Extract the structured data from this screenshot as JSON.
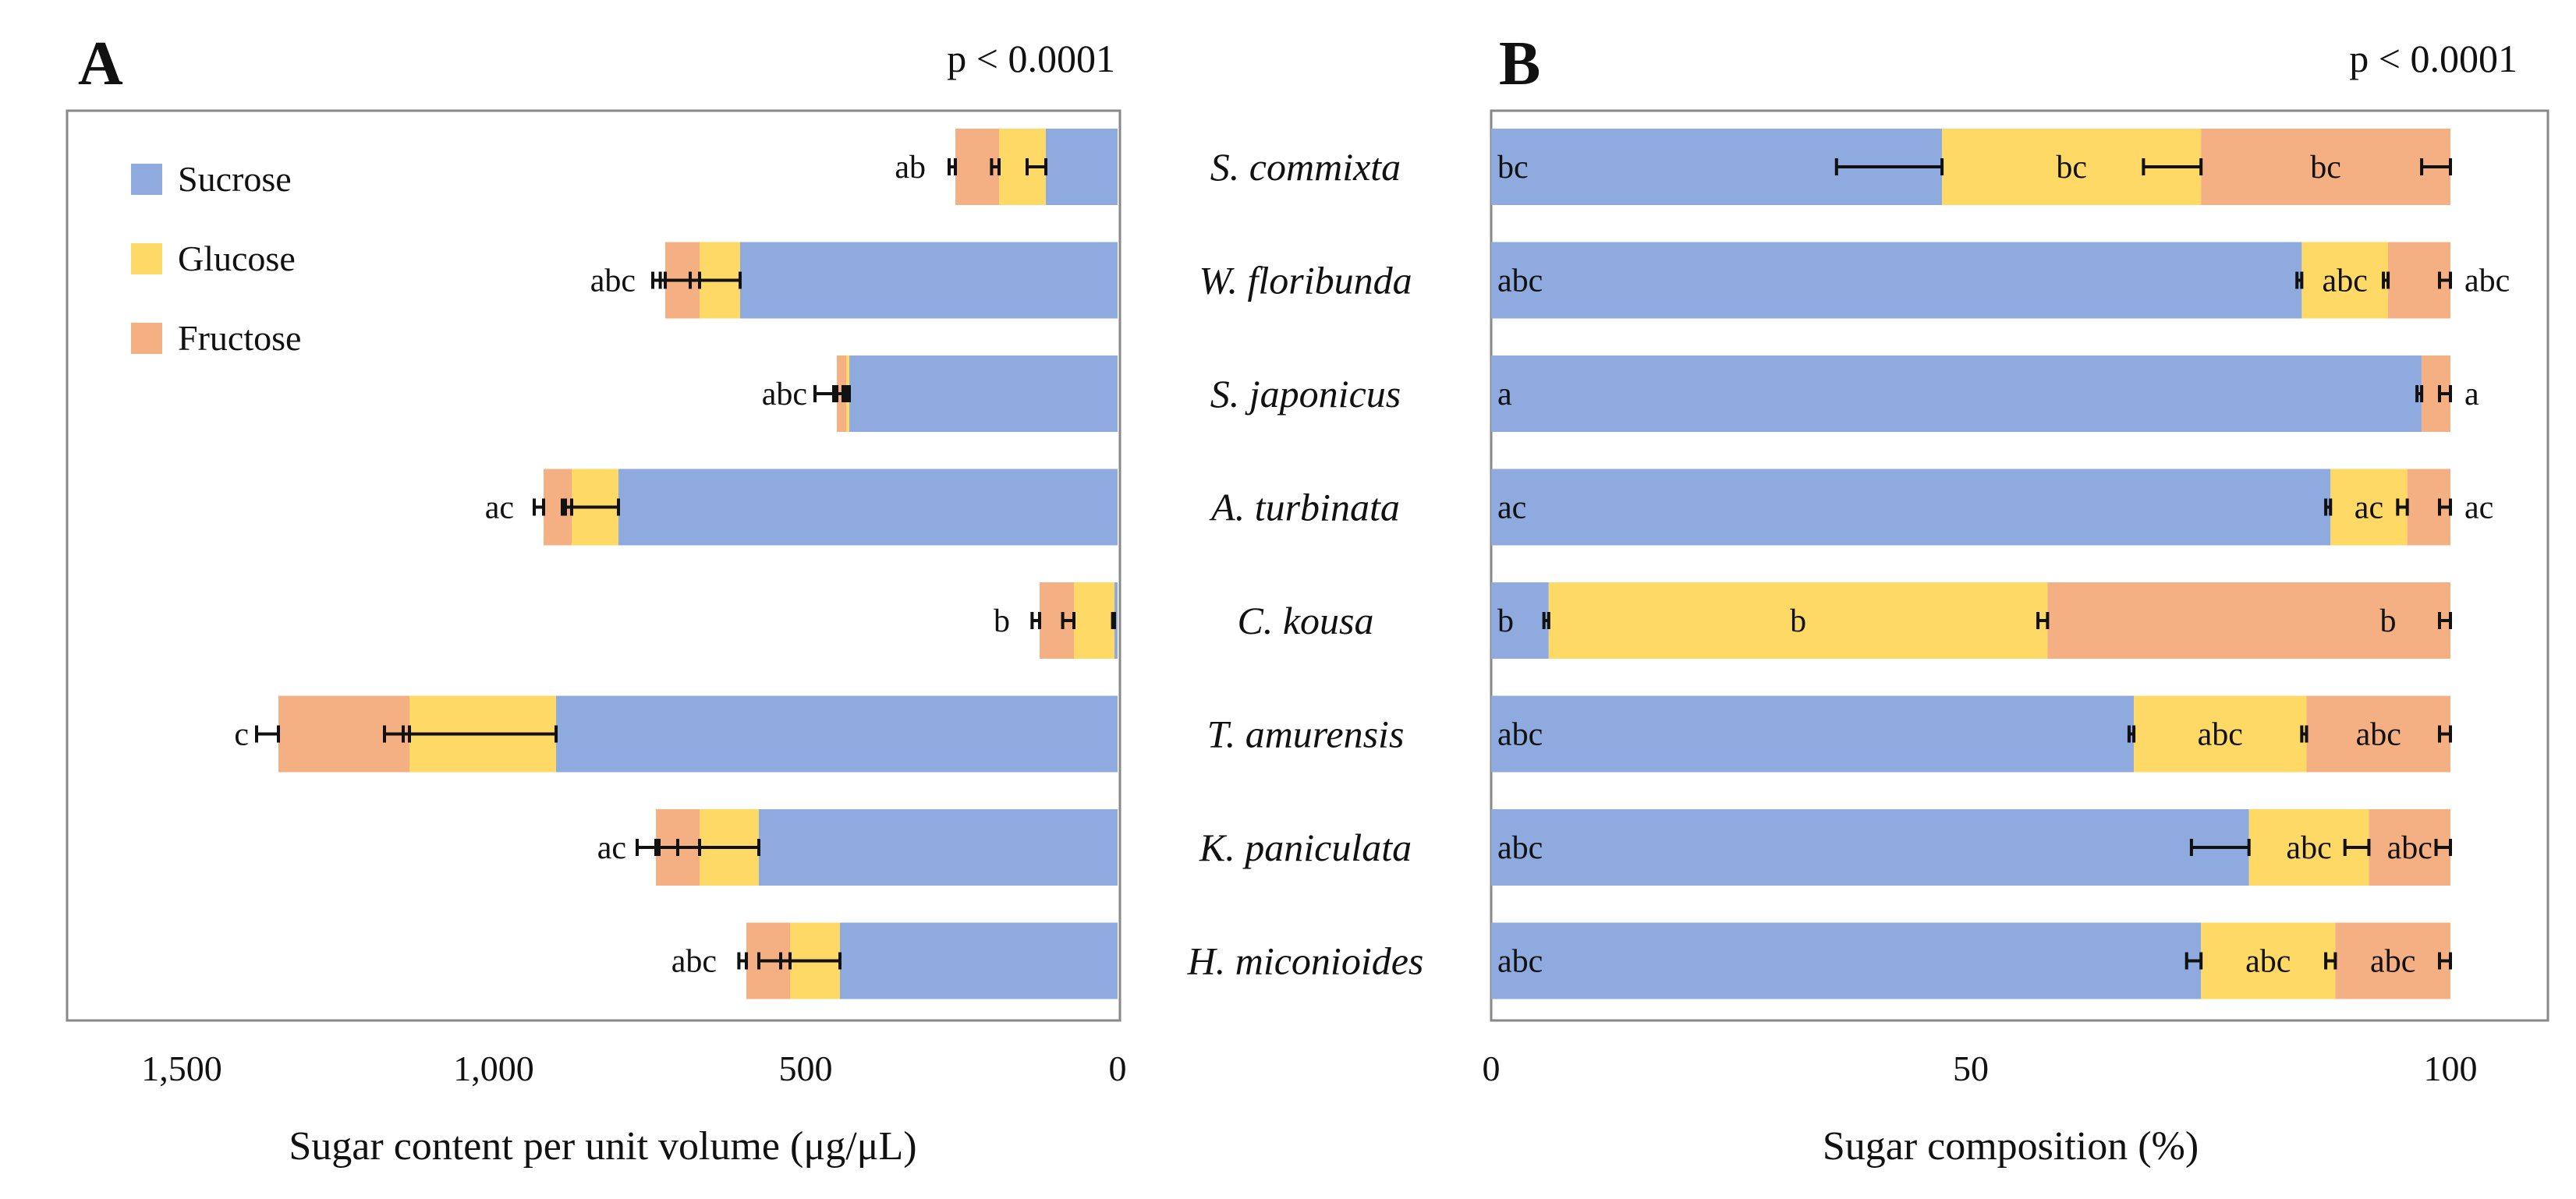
{
  "colors": {
    "sucrose": "#8eaade",
    "glucose": "#fed966",
    "fructose": "#f4b083",
    "frame": "#888888"
  },
  "species": [
    "S. commixta",
    "W. floribunda",
    "S. japonicus",
    "A. turbinata",
    "C. kousa",
    "T. amurensis",
    "K. paniculata",
    "H. miconioides"
  ],
  "chart_data": [
    {
      "panel": "A",
      "type": "bar",
      "orientation": "horizontal-stacked",
      "annotation": "p < 0.0001",
      "xlabel": "Sugar content per unit volume (μg/μL)",
      "xlim": [
        1500,
        0
      ],
      "x_reversed": true,
      "ticks": [
        1500,
        1000,
        500,
        0
      ],
      "tick_labels": [
        "1,500",
        "1,000",
        "500",
        "0"
      ],
      "legend": {
        "placement": "top-left",
        "entries": [
          "Sucrose",
          "Glucose",
          "Fructose"
        ]
      },
      "categories": [
        "S. commixta",
        "W. floribunda",
        "S. japonicus",
        "A. turbinata",
        "C. kousa",
        "T. amurensis",
        "K. paniculata",
        "H. miconioides"
      ],
      "series": [
        {
          "name": "Sucrose",
          "values": [
            115,
            605,
            430,
            800,
            5,
            900,
            575,
            445
          ],
          "error": [
            30,
            140,
            55,
            85,
            3,
            245,
            160,
            130
          ]
        },
        {
          "name": "Glucose",
          "values": [
            75,
            65,
            5,
            75,
            65,
            235,
            95,
            80
          ],
          "error": [
            12,
            15,
            5,
            15,
            18,
            40,
            35,
            15
          ]
        },
        {
          "name": "Fructose",
          "values": [
            70,
            55,
            15,
            45,
            55,
            210,
            70,
            70
          ],
          "error": [
            10,
            8,
            5,
            15,
            12,
            35,
            30,
            12
          ]
        }
      ],
      "group_letters": [
        "ab",
        "abc",
        "abc",
        "ac",
        "b",
        "c",
        "ac",
        "abc"
      ]
    },
    {
      "panel": "B",
      "type": "bar",
      "orientation": "horizontal-stacked",
      "annotation": "p < 0.0001",
      "xlabel": "Sugar composition (%)",
      "xlim": [
        0,
        110
      ],
      "ticks": [
        0,
        50,
        100
      ],
      "tick_labels": [
        "0",
        "50",
        "100"
      ],
      "categories": [
        "S. commixta",
        "W. floribunda",
        "S. japonicus",
        "A. turbinata",
        "C. kousa",
        "T. amurensis",
        "K. paniculata",
        "H. miconioides"
      ],
      "series": [
        {
          "name": "Sucrose",
          "values": [
            47,
            84.5,
            97,
            87.5,
            6,
            67,
            79,
            74
          ],
          "error": [
            11,
            0.5,
            0.3,
            0.5,
            0.5,
            0.5,
            6,
            1.5
          ]
        },
        {
          "name": "Glucose",
          "values": [
            27,
            9,
            0,
            8,
            52,
            18,
            12.5,
            14
          ],
          "error": [
            6,
            0.3,
            0,
            1,
            1,
            0.5,
            2.5,
            1
          ]
        },
        {
          "name": "Fructose",
          "values": [
            26,
            6.5,
            3,
            4.5,
            42,
            15,
            8.5,
            12
          ],
          "error": [
            3,
            0.3,
            0.3,
            1,
            1,
            0.3,
            1.5,
            1
          ]
        }
      ],
      "segment_letters": [
        [
          "bc",
          "bc",
          "bc"
        ],
        [
          "abc",
          "abc",
          "abc"
        ],
        [
          "a",
          "",
          "a"
        ],
        [
          "ac",
          "ac",
          "ac"
        ],
        [
          "b",
          "b",
          "b"
        ],
        [
          "abc",
          "abc",
          "abc"
        ],
        [
          "abc",
          "abc",
          "abc"
        ],
        [
          "abc",
          "abc",
          "abc"
        ]
      ]
    }
  ]
}
